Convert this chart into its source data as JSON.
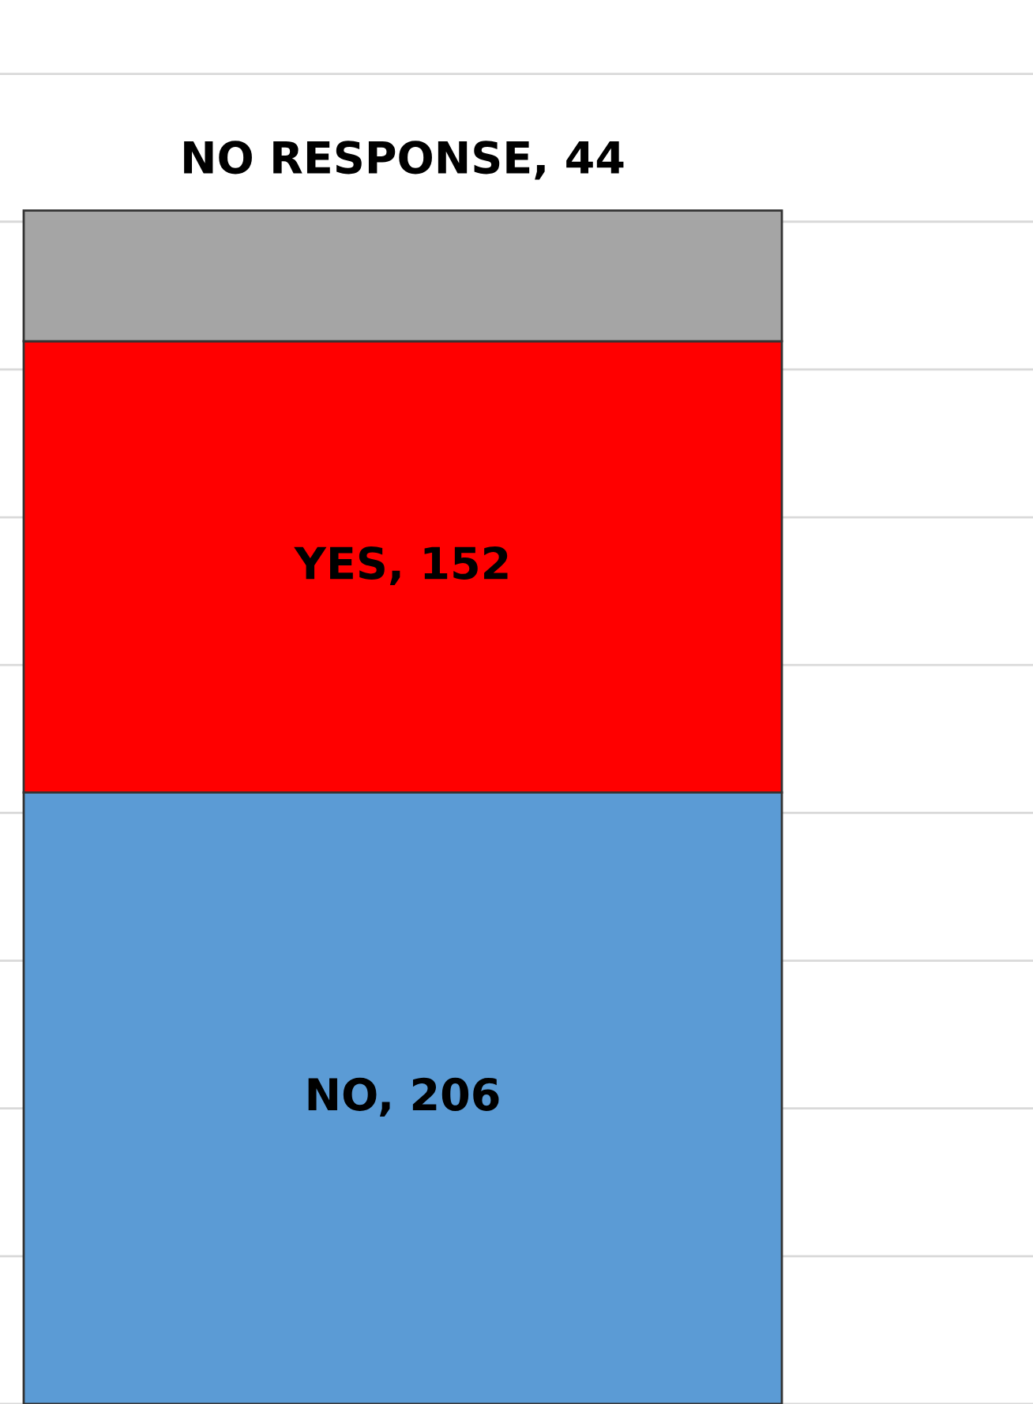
{
  "chart_data": {
    "type": "bar",
    "stacked": true,
    "categories": [
      null
    ],
    "series": [
      {
        "color": "#5b9bd5",
        "values": [
          206
        ],
        "value_labels": [
          "NO, 206"
        ]
      },
      {
        "color": "#ff0000",
        "values": [
          152
        ],
        "value_labels": [
          "YES, 152"
        ]
      },
      {
        "color": "#a5a5a5",
        "values": [
          44
        ],
        "value_labels": [
          "NO RESPONSE, 44"
        ]
      }
    ],
    "grid": "y",
    "tick_labels": false,
    "legend": false
  }
}
